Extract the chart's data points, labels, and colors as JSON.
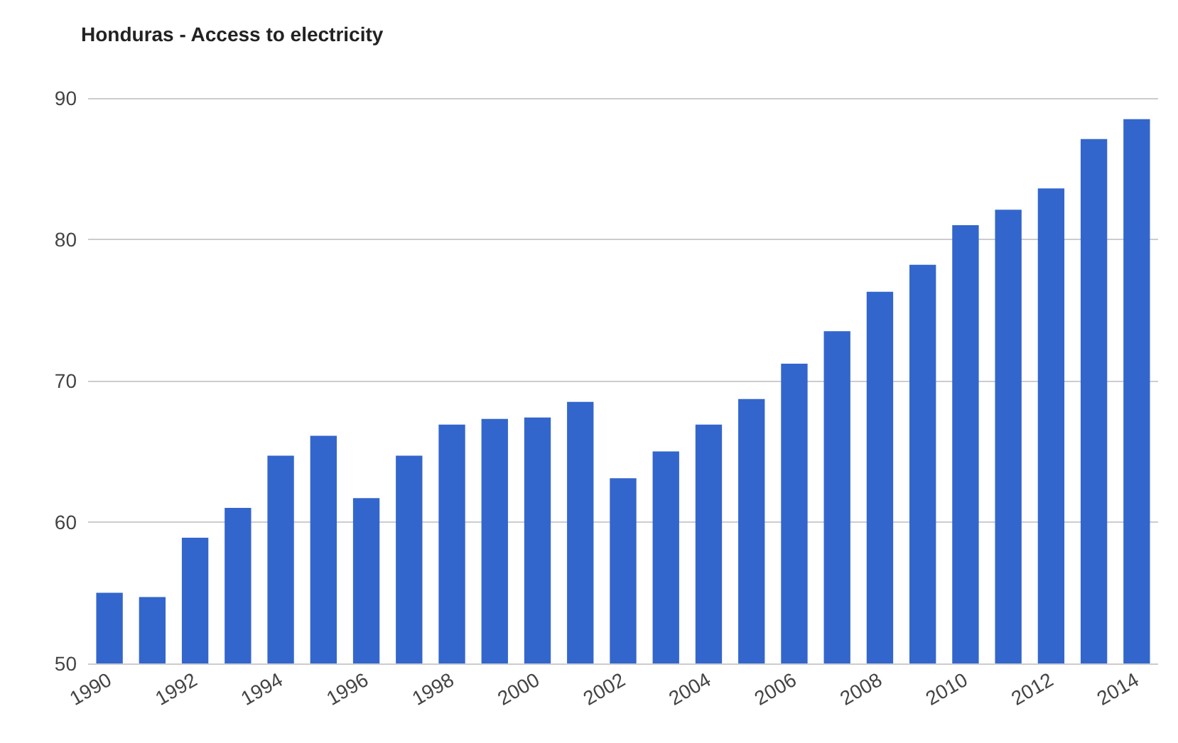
{
  "chart_data": {
    "type": "bar",
    "title": "Honduras - Access to electricity",
    "categories": [
      "1990",
      null,
      "1992",
      null,
      "1994",
      null,
      "1996",
      null,
      "1998",
      null,
      "2000",
      null,
      "2002",
      null,
      "2004",
      null,
      "2006",
      null,
      "2008",
      null,
      "2010",
      null,
      "2012",
      null,
      "2014"
    ],
    "values": [
      55.0,
      54.7,
      58.9,
      61.0,
      64.7,
      66.1,
      61.7,
      64.7,
      66.9,
      67.3,
      67.4,
      68.5,
      63.1,
      65.0,
      66.9,
      68.7,
      71.2,
      73.5,
      76.3,
      78.2,
      81.0,
      82.1,
      83.6,
      87.1,
      88.5
    ],
    "color": "#3366cc",
    "ylim": [
      50,
      90
    ],
    "yticks": [
      50,
      60,
      70,
      80,
      90
    ],
    "grid": "y"
  }
}
